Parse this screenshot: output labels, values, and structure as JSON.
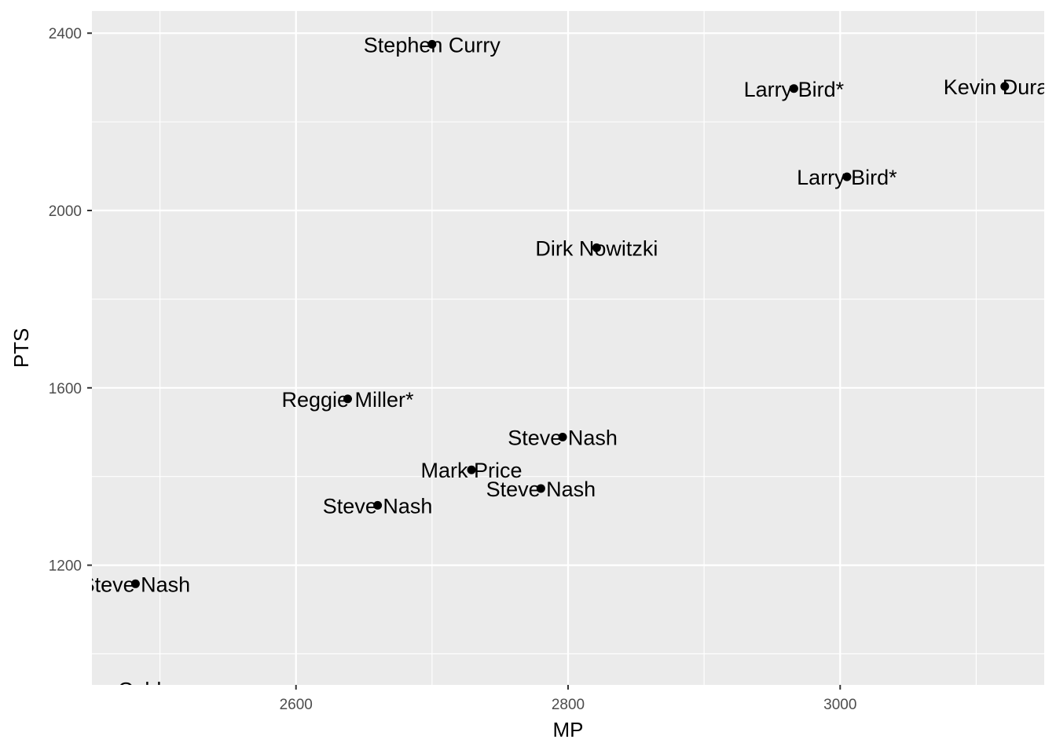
{
  "chart_data": {
    "type": "scatter",
    "title": "",
    "xlabel": "MP",
    "ylabel": "PTS",
    "xlim": [
      2450,
      3150
    ],
    "ylim": [
      930,
      2450
    ],
    "x_ticks": [
      2600,
      2800,
      3000
    ],
    "x_minor_ticks": [
      2500,
      2700,
      2900,
      3100
    ],
    "y_ticks": [
      1200,
      1600,
      2000,
      2400
    ],
    "y_minor_ticks": [
      1000,
      1400,
      1800,
      2200
    ],
    "x_tick_labels": [
      "2600",
      "2800",
      "3000"
    ],
    "y_tick_labels": [
      "1200",
      "1600",
      "2000",
      "2400"
    ],
    "grid": true,
    "colors": {
      "panel_background": "#ebebeb",
      "grid": "#ffffff",
      "point": "#000000",
      "tick_text": "#4d4d4d"
    },
    "points": [
      {
        "x": 2700,
        "y": 2375,
        "label": "Stephen Curry"
      },
      {
        "x": 2966,
        "y": 2275,
        "label": "Larry Bird*"
      },
      {
        "x": 3121,
        "y": 2280,
        "label": "Kevin Durant"
      },
      {
        "x": 3005,
        "y": 2076,
        "label": "Larry Bird*"
      },
      {
        "x": 2821,
        "y": 1916,
        "label": "Dirk Nowitzki"
      },
      {
        "x": 2638,
        "y": 1575,
        "label": "Reggie Miller*"
      },
      {
        "x": 2796,
        "y": 1489,
        "label": "Steve Nash"
      },
      {
        "x": 2729,
        "y": 1415,
        "label": "Mark Price"
      },
      {
        "x": 2780,
        "y": 1373,
        "label": "Steve Nash"
      },
      {
        "x": 2660,
        "y": 1335,
        "label": "Steve Nash"
      },
      {
        "x": 2482,
        "y": 1158,
        "label": "Steve Nash"
      },
      {
        "x": 2482,
        "y": 920,
        "label": "Jose Calderon"
      }
    ]
  }
}
